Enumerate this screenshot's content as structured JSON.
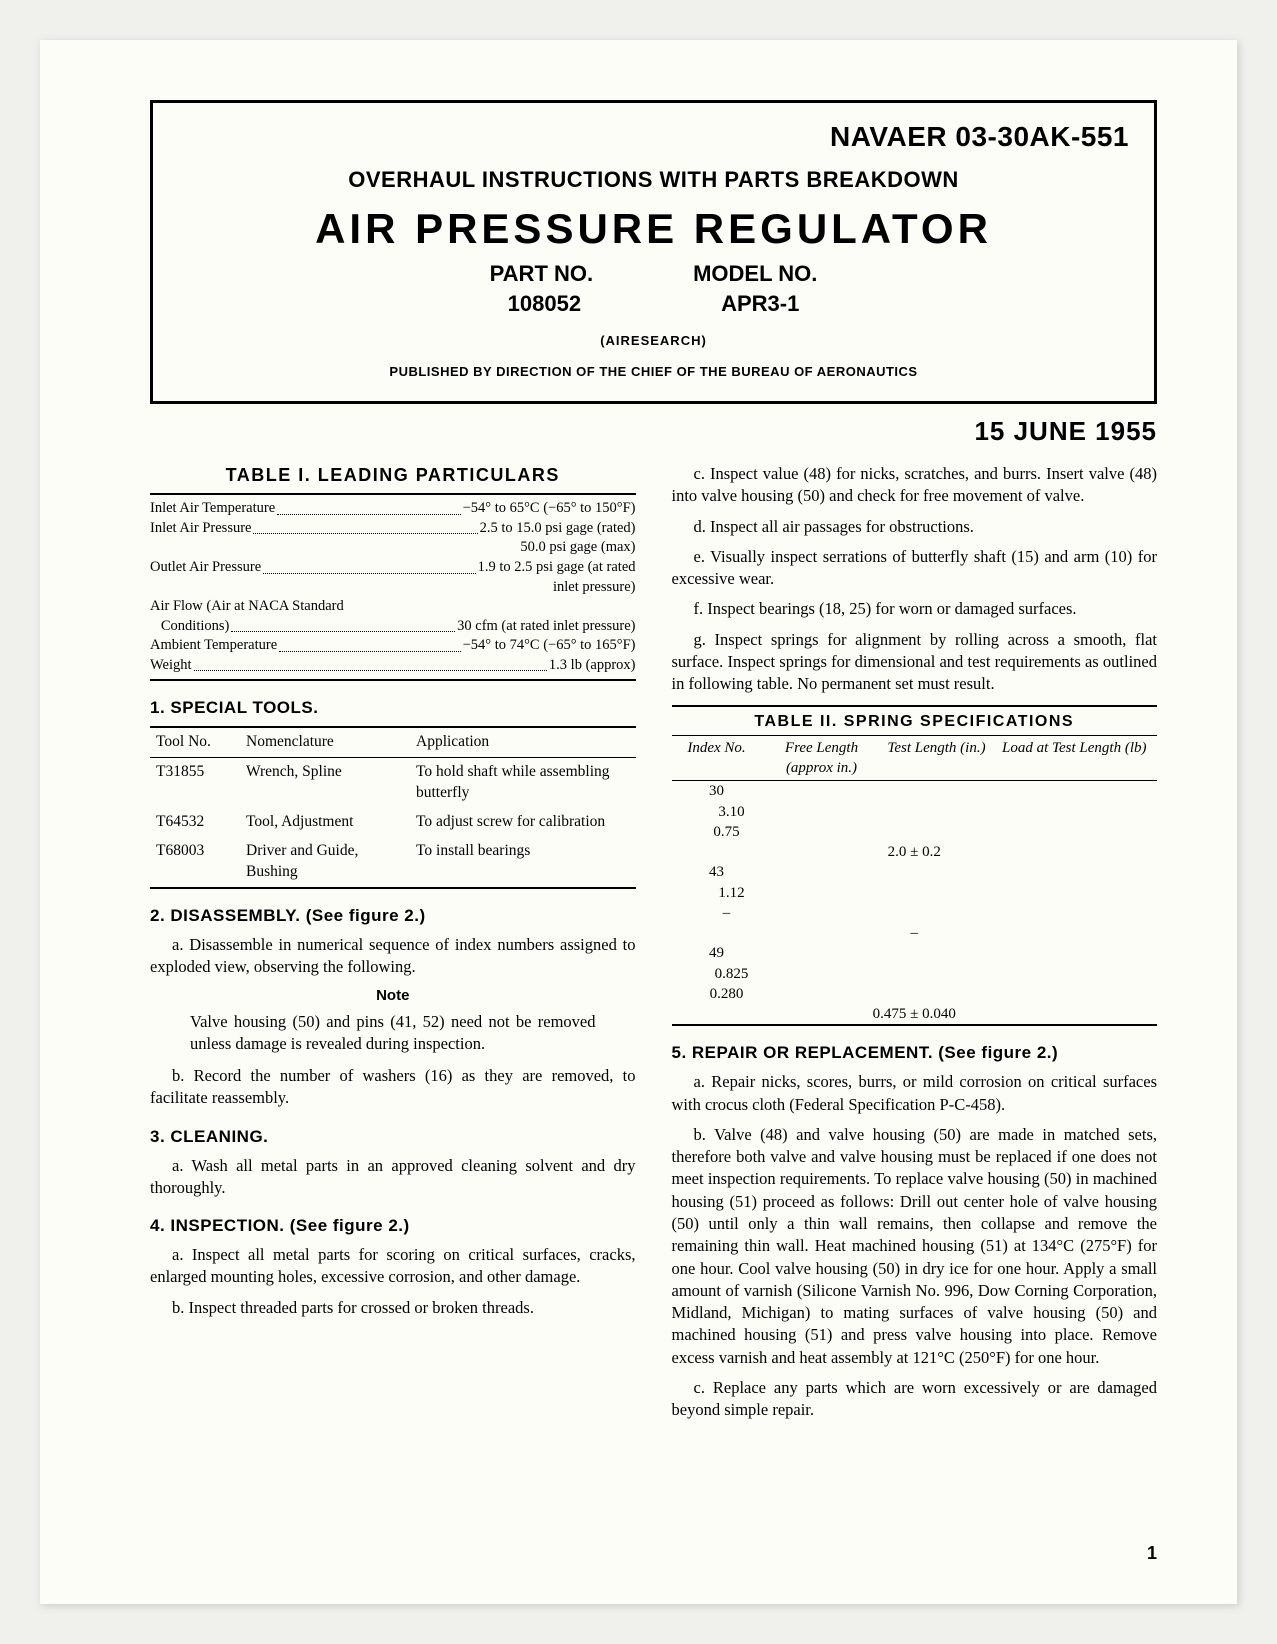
{
  "header": {
    "doc_number": "NAVAER 03-30AK-551",
    "category": "OVERHAUL INSTRUCTIONS WITH PARTS BREAKDOWN",
    "title": "AIR PRESSURE REGULATOR",
    "part_no_label": "PART NO.",
    "model_no_label": "MODEL NO.",
    "part_no": "108052",
    "model_no": "APR3-1",
    "manufacturer": "(AIRESEARCH)",
    "published_by": "PUBLISHED BY DIRECTION OF THE CHIEF OF THE BUREAU OF AERONAUTICS",
    "date": "15 JUNE 1955"
  },
  "table1": {
    "title": "TABLE I.   LEADING PARTICULARS",
    "rows": [
      {
        "label": "Inlet Air Temperature",
        "value": "−54° to 65°C (−65° to 150°F)",
        "sub": null
      },
      {
        "label": "Inlet Air Pressure",
        "value": "2.5 to 15.0 psi gage (rated)",
        "sub": "50.0 psi gage (max)"
      },
      {
        "label": "Outlet Air Pressure",
        "value": "1.9 to 2.5 psi gage (at rated",
        "sub": "inlet pressure)"
      },
      {
        "label": "Air Flow (Air at NACA Standard\nConditions)",
        "value": "30 cfm (at rated inlet pressure)",
        "sub": null
      },
      {
        "label": "Ambient Temperature",
        "value": "−54° to 74°C (−65° to 165°F)",
        "sub": null
      },
      {
        "label": "Weight",
        "value": "1.3 lb (approx)",
        "sub": null
      }
    ]
  },
  "sections": {
    "s1": {
      "head": "1. SPECIAL TOOLS."
    },
    "s2": {
      "head": "2. DISASSEMBLY. (See figure 2.)",
      "a": "a. Disassemble in numerical sequence of index numbers assigned to exploded view, observing the following.",
      "note_head": "Note",
      "note": "Valve housing (50) and pins (41, 52) need not be removed unless damage is revealed during inspection.",
      "b": "b. Record the number of washers (16) as they are removed, to facilitate reassembly."
    },
    "s3": {
      "head": "3. CLEANING.",
      "a": "a. Wash all metal parts in an approved cleaning solvent and dry thoroughly."
    },
    "s4": {
      "head": "4. INSPECTION. (See figure 2.)",
      "a": "a. Inspect all metal parts for scoring on critical surfaces, cracks, enlarged mounting holes, excessive corrosion, and other damage.",
      "b": "b. Inspect threaded parts for crossed or broken threads.",
      "c": "c. Inspect value (48) for nicks, scratches, and burrs. Insert valve (48) into valve housing (50) and check for free movement of valve.",
      "d": "d. Inspect all air passages for obstructions.",
      "e": "e. Visually inspect serrations of butterfly shaft (15) and arm (10) for excessive wear.",
      "f": "f. Inspect bearings (18, 25) for worn or damaged surfaces.",
      "g": "g. Inspect springs for alignment by rolling across a smooth, flat surface. Inspect springs for dimensional and test requirements as outlined in following table. No permanent set must result."
    },
    "s5": {
      "head": "5. REPAIR OR REPLACEMENT. (See figure 2.)",
      "a": "a. Repair nicks, scores, burrs, or mild corrosion on critical surfaces with crocus cloth (Federal Specification P-C-458).",
      "b": "b. Valve (48) and valve housing (50) are made in matched sets, therefore both valve and valve housing must be replaced if one does not meet inspection requirements. To replace valve housing (50) in machined housing (51) proceed as follows: Drill out center hole of valve housing (50) until only a thin wall remains, then collapse and remove the remaining thin wall. Heat machined housing (51) at 134°C (275°F) for one hour. Cool valve housing (50) in dry ice for one hour. Apply a small amount of varnish (Silicone Varnish No. 996, Dow Corning Corporation, Midland, Michigan) to mating surfaces of valve housing (50) and machined housing (51) and press valve housing into place. Remove excess varnish and heat assembly at 121°C (250°F) for one hour.",
      "c": "c. Replace any parts which are worn excessively or are damaged beyond simple repair."
    }
  },
  "tools": {
    "head": {
      "c1": "Tool No.",
      "c2": "Nomenclature",
      "c3": "Application"
    },
    "rows": [
      {
        "c1": "T31855",
        "c2": "Wrench, Spline",
        "c3": "To hold shaft while assembling butterfly"
      },
      {
        "c1": "T64532",
        "c2": "Tool, Adjustment",
        "c3": "To adjust screw for calibration"
      },
      {
        "c1": "T68003",
        "c2": "Driver and Guide, Bushing",
        "c3": "To install bearings"
      }
    ]
  },
  "table2": {
    "title": "TABLE II.   SPRING SPECIFICATIONS",
    "head": {
      "c1": "Index No.",
      "c2": "Free Length (approx in.)",
      "c3": "Test Length (in.)",
      "c4": "Load at Test Length (lb)"
    },
    "rows": [
      {
        "c1": "30",
        "c2": "3.10",
        "c3": "0.75",
        "c4": "2.0 ± 0.2"
      },
      {
        "c1": "43",
        "c2": "1.12",
        "c3": "–",
        "c4": "–"
      },
      {
        "c1": "49",
        "c2": "0.825",
        "c3": "0.280",
        "c4": "0.475 ± 0.040"
      }
    ]
  },
  "page_number": "1"
}
